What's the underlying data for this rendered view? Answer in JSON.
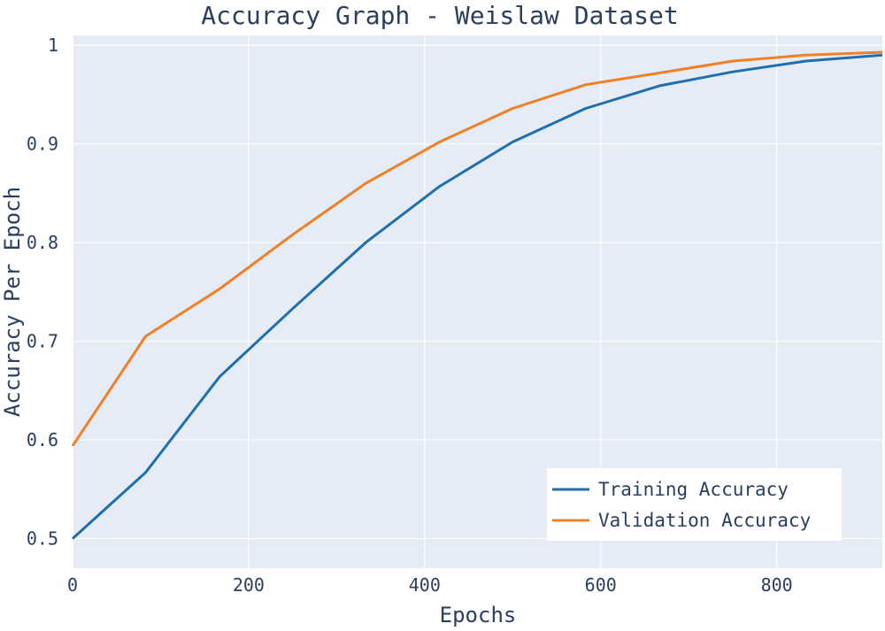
{
  "chart_data": {
    "type": "line",
    "title": "Accuracy Graph - Weislaw Dataset",
    "xlabel": "Epochs",
    "ylabel": "Accuracy Per Epoch",
    "xlim": [
      0,
      920
    ],
    "ylim": [
      0.47,
      1.01
    ],
    "xticks": [
      0,
      200,
      400,
      600,
      800
    ],
    "yticks": [
      0.5,
      0.6,
      0.7,
      0.8,
      0.9,
      1
    ],
    "grid": true,
    "legend_position": "bottom-right",
    "plot_background": "#e5ecf6",
    "series": [
      {
        "name": "Training Accuracy",
        "color": "#1f6fae",
        "x": [
          0,
          83,
          167,
          250,
          333,
          417,
          500,
          583,
          667,
          750,
          833,
          920
        ],
        "y": [
          0.5,
          0.567,
          0.664,
          0.733,
          0.8,
          0.857,
          0.902,
          0.936,
          0.959,
          0.973,
          0.984,
          0.99
        ]
      },
      {
        "name": "Validation Accuracy",
        "color": "#f07f26",
        "x": [
          0,
          83,
          167,
          250,
          333,
          417,
          500,
          583,
          667,
          750,
          833,
          920
        ],
        "y": [
          0.594,
          0.705,
          0.753,
          0.808,
          0.86,
          0.902,
          0.936,
          0.96,
          0.972,
          0.984,
          0.99,
          0.993
        ]
      }
    ]
  }
}
